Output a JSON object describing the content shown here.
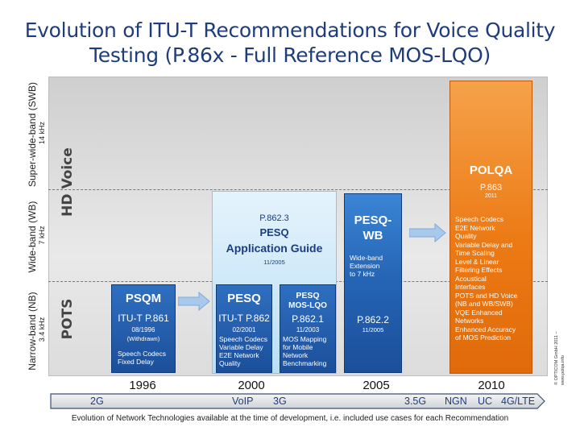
{
  "title": {
    "line1": "Evolution of ITU-T Recommendations for Voice Quality",
    "line2": "Testing (P.86x - Full Reference MOS-LQO)"
  },
  "axis": {
    "swb_label": "Super-wide-band (SWB)",
    "swb_freq": "14 kHz",
    "wb_label": "Wide-band (WB)",
    "wb_freq": "7 kHz",
    "nb_label": "Narrow-band (NB)",
    "nb_freq": "3.4 kHz",
    "hd_voice": "HD Voice",
    "pots": "POTS"
  },
  "boxes": {
    "psqm": {
      "name": "PSQM",
      "std": "ITU-T P.861",
      "date": "08/1996",
      "note": "(Withdrawn)",
      "desc": "Speech Codecs\nFixed Delay"
    },
    "pesq": {
      "name": "PESQ",
      "std": "ITU-T P.862",
      "date": "02/2001",
      "desc": "Speech Codecs\nVariable Delay\nE2E Network\nQuality"
    },
    "pesq_guide": {
      "std": "P.862.3",
      "name": "PESQ",
      "sub": "Application Guide",
      "date": "11/2005"
    },
    "pesq_mos": {
      "name": "PESQ",
      "sub": "MOS-LQO",
      "std": "P.862.1",
      "date": "11/2003",
      "desc": "MOS Mapping\nfor Mobile\nNetwork\nBenchmarking"
    },
    "pesq_wb": {
      "name": "PESQ-",
      "name2": "WB",
      "desc": "Wide-band\nExtension\nto 7 kHz",
      "std": "P.862.2",
      "date": "11/2005"
    },
    "polqa": {
      "name": "POLQA",
      "std": "P.863",
      "date": "2011",
      "desc": "Speech Codecs\nE2E Network\nQuality\nVariable Delay and\nTime Scaling\nLevel & Linear\nFiltering Effects\nAcoustical\nInterfaces\nPOTS and HD Voice\n(NB and WB/SWB)\nVQE Enhanced\nNetworks\nEnhanced Accuracy\nof MOS Prediction"
    }
  },
  "years": [
    "1996",
    "2000",
    "2005",
    "2010"
  ],
  "networks": [
    "2G",
    "VoIP",
    "3G",
    "3.5G",
    "NGN",
    "UC",
    "4G/LTE"
  ],
  "caption": "Evolution of Network Technologies available at the time of development, i.e. included use cases for each Recommendation",
  "copyright": {
    "line1": "© OPTICOM GmbH 2011 –",
    "line2": "www.polqa.info"
  },
  "colors": {
    "title": "#1f3d7a",
    "box_blue": "#1b4f9a",
    "polqa_orange": "#ec7a14",
    "light_blue": "#b9dff5"
  }
}
